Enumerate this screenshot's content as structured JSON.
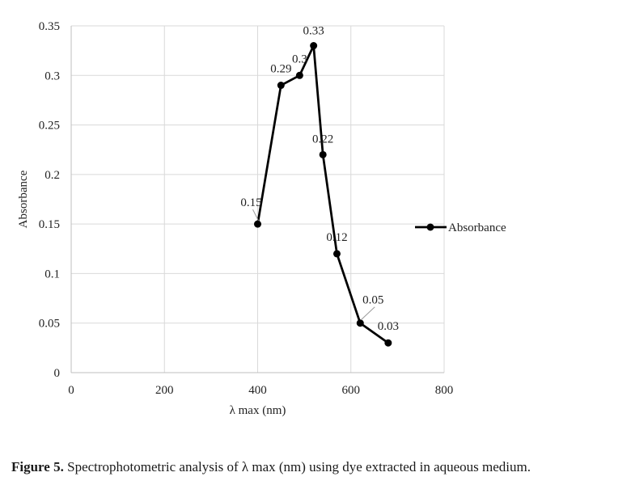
{
  "chart_data": {
    "type": "line",
    "x": [
      400,
      450,
      490,
      520,
      540,
      570,
      620,
      680
    ],
    "series": [
      {
        "name": "Absorbance",
        "values": [
          0.15,
          0.29,
          0.3,
          0.33,
          0.22,
          0.12,
          0.05,
          0.03
        ]
      }
    ],
    "data_labels": [
      "0.15",
      "0.29",
      "0.3",
      "0.33",
      "0.22",
      "0.12",
      "0.05",
      "0.03"
    ],
    "xlabel": "λ max (nm)",
    "ylabel": "Absorbance",
    "xlim": [
      0,
      800
    ],
    "ylim": [
      0,
      0.35
    ],
    "x_ticks": [
      0,
      200,
      400,
      600,
      800
    ],
    "x_tick_labels": [
      "0",
      "200",
      "400",
      "600",
      "800"
    ],
    "y_ticks": [
      0,
      0.05,
      0.1,
      0.15,
      0.2,
      0.25,
      0.3,
      0.35
    ],
    "y_tick_labels": [
      "0",
      "0.05",
      "0.1",
      "0.15",
      "0.2",
      "0.25",
      "0.3",
      "0.35"
    ],
    "grid": true,
    "legend_position": "right",
    "line_color": "#000000",
    "grid_color": "#d9d9d9"
  },
  "caption": {
    "label": "Figure 5.",
    "text": " Spectrophotometric analysis of λ max (nm) using dye extracted in aqueous medium."
  }
}
